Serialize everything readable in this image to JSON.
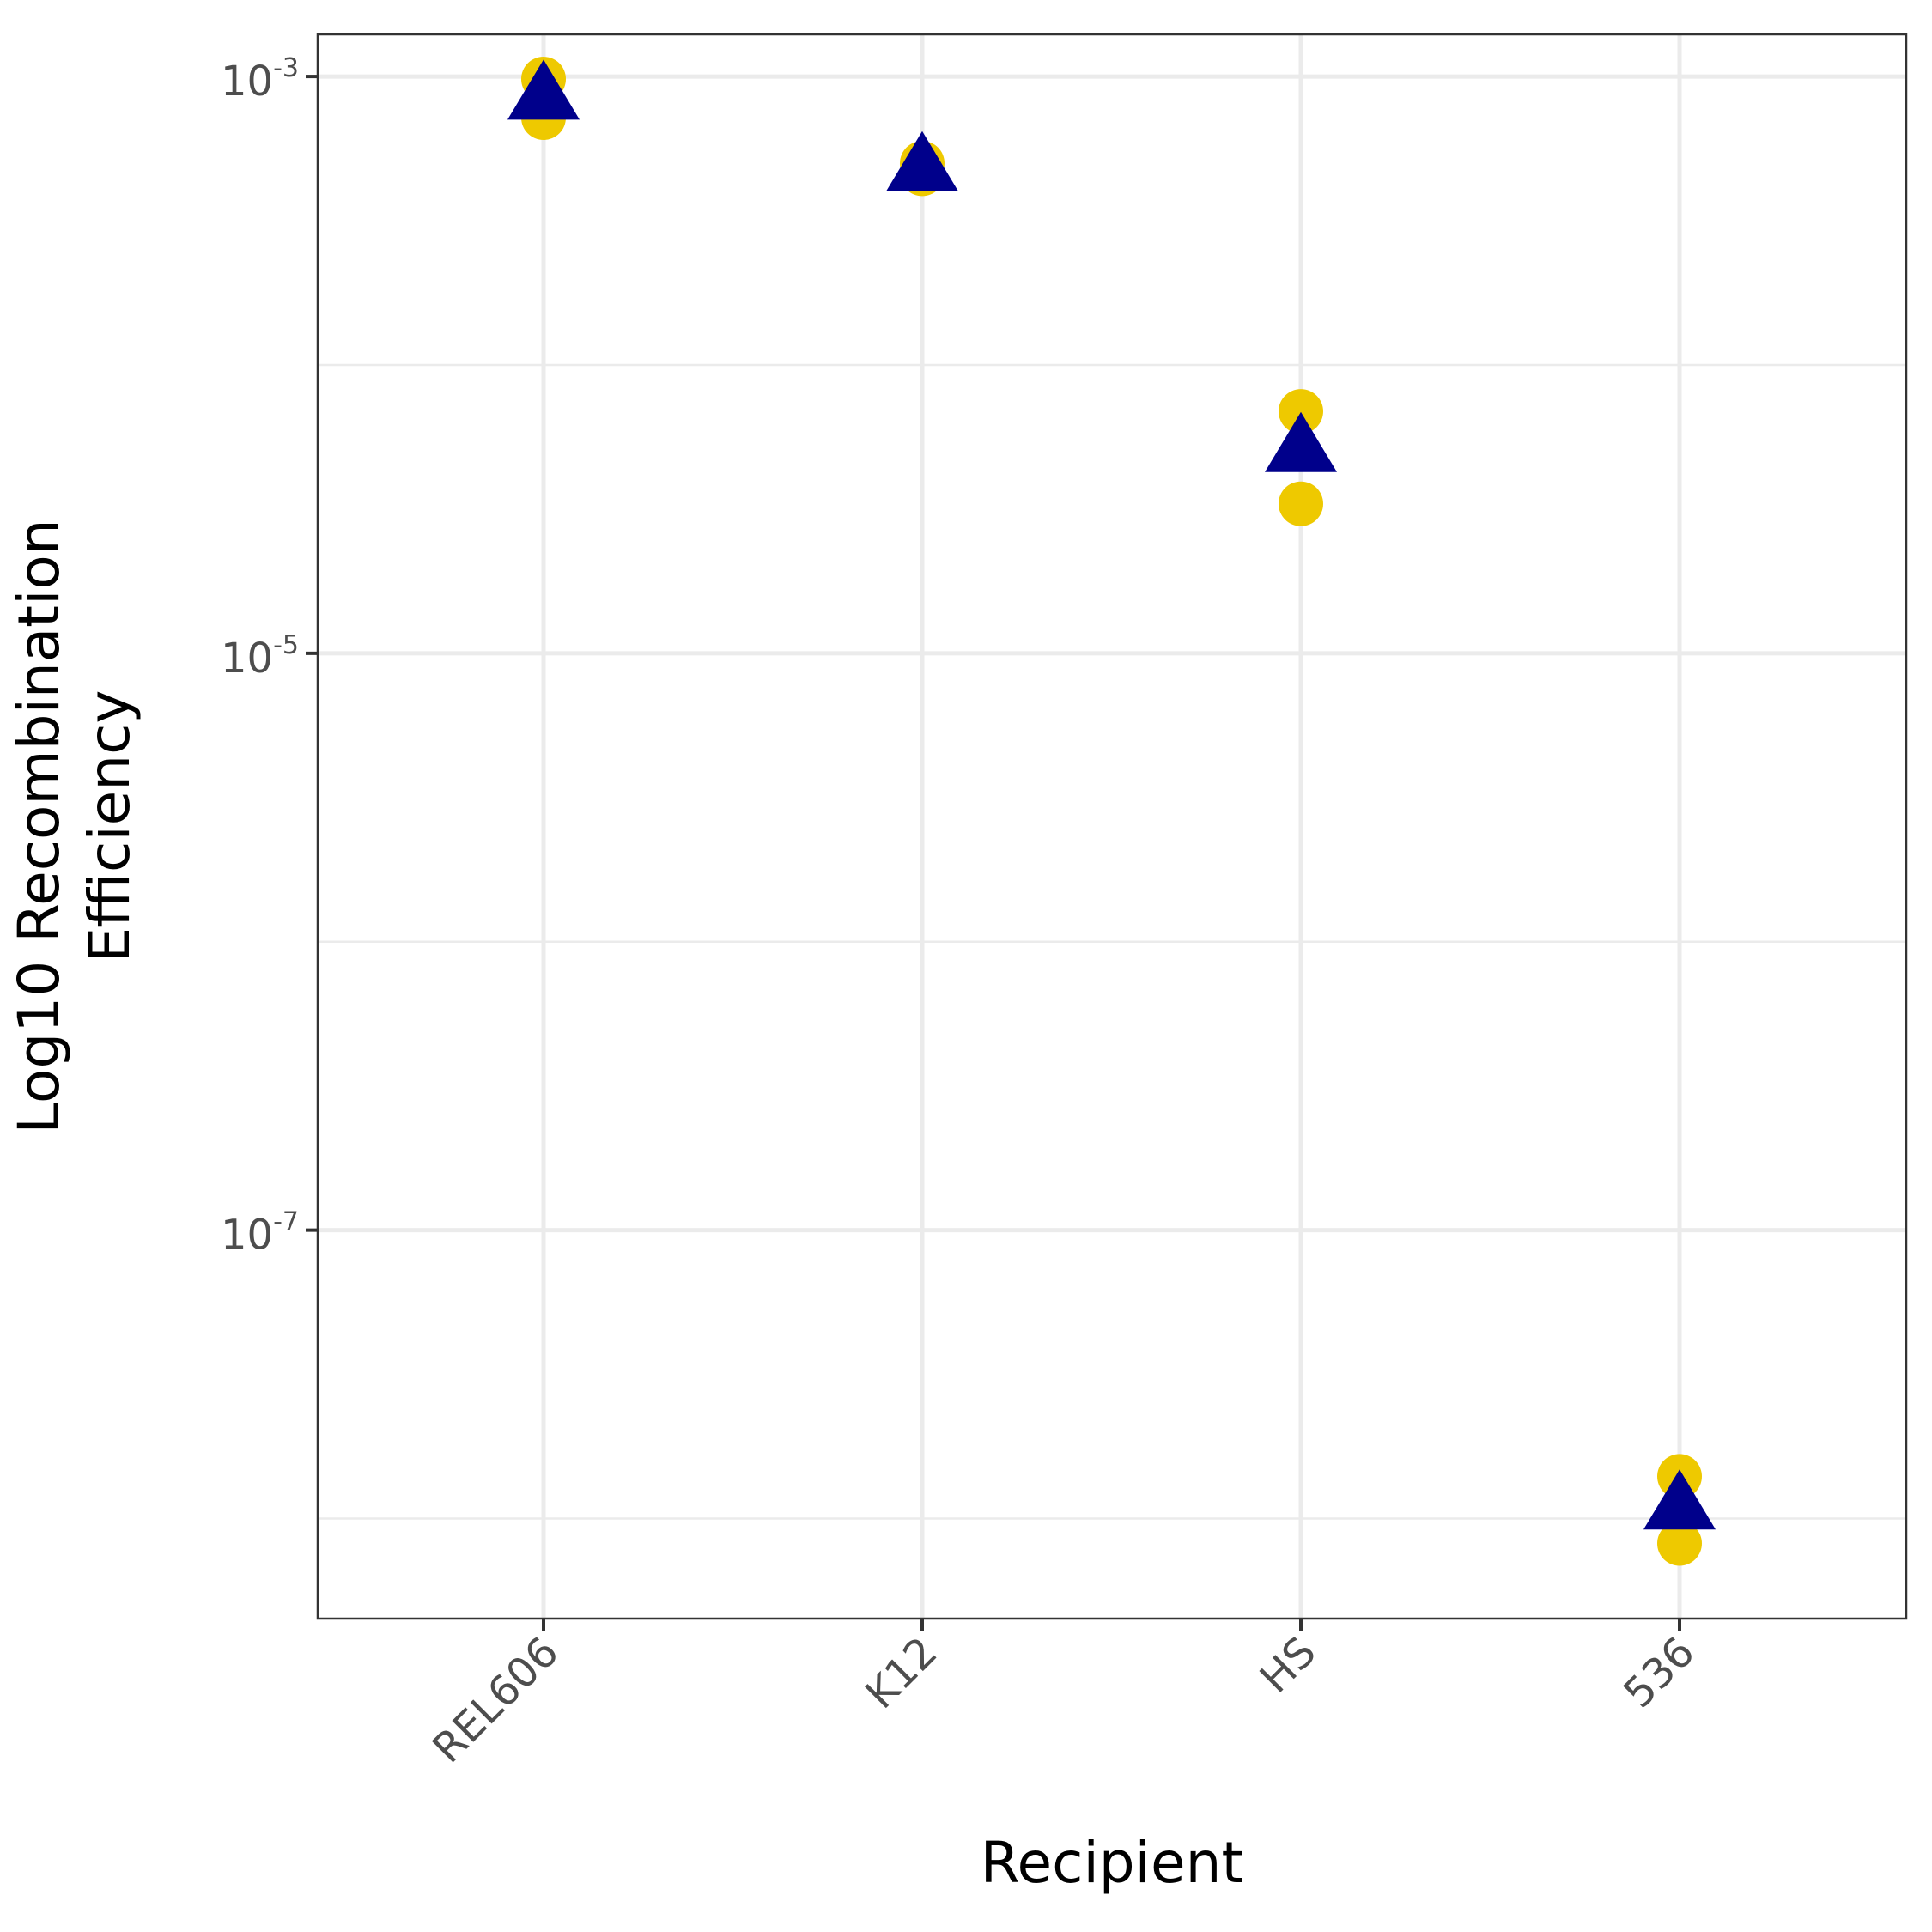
{
  "chart_data": {
    "type": "scatter",
    "title": "",
    "xlabel": "Recipient",
    "ylabel_lines": [
      "Log10 Recombination",
      "Efficiency"
    ],
    "y_scale": "log10",
    "ylim": [
      4.5e-09,
      0.0014
    ],
    "categories": [
      "REL606",
      "K12",
      "HS",
      "536"
    ],
    "y_ticks": [
      {
        "value": 0.001,
        "base": "10",
        "exp": "-3"
      },
      {
        "value": 1e-05,
        "base": "10",
        "exp": "-5"
      },
      {
        "value": 1e-07,
        "base": "10",
        "exp": "-7"
      }
    ],
    "y_minor_gridlines": [
      0.0001,
      1e-06,
      1e-08
    ],
    "grid": true,
    "legend": "none",
    "colors": {
      "points": "#EEC900",
      "mean": "#00008B",
      "grid": "#EBEBEB",
      "panel_border": "#333333"
    },
    "series": [
      {
        "marker": "circle",
        "points": [
          {
            "x": "REL606",
            "y": 0.00098
          },
          {
            "x": "REL606",
            "y": 0.00072
          },
          {
            "x": "K12",
            "y": 0.0005
          },
          {
            "x": "K12",
            "y": 0.00046
          },
          {
            "x": "HS",
            "y": 6.9e-05
          },
          {
            "x": "HS",
            "y": 3.3e-05
          },
          {
            "x": "536",
            "y": 1.4e-08
          },
          {
            "x": "536",
            "y": 8.2e-09
          }
        ]
      },
      {
        "marker": "triangle",
        "points": [
          {
            "x": "REL606",
            "y": 0.00085
          },
          {
            "x": "K12",
            "y": 0.00048
          },
          {
            "x": "HS",
            "y": 5.1e-05
          },
          {
            "x": "536",
            "y": 1.1e-08
          }
        ]
      }
    ]
  }
}
